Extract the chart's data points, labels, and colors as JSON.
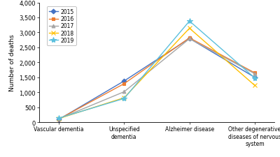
{
  "categories": [
    "Vascular dementia",
    "Unspecified\ndementia",
    "Alzheimer disease",
    "Other degenerative\ndiseases of nervous\nsystem"
  ],
  "series": {
    "2015": [
      95,
      1380,
      2800,
      1500
    ],
    "2016": [
      105,
      1290,
      2820,
      1650
    ],
    "2017": [
      115,
      1020,
      2790,
      1620
    ],
    "2018": [
      125,
      820,
      3140,
      1230
    ],
    "2019": [
      140,
      795,
      3380,
      1480
    ]
  },
  "colors": {
    "2015": "#4472c4",
    "2016": "#ed7d31",
    "2017": "#a6a6a6",
    "2018": "#ffc000",
    "2019": "#5bc0de"
  },
  "markers": {
    "2015": "D",
    "2016": "s",
    "2017": "^",
    "2018": "x",
    "2019": "*"
  },
  "markersizes": {
    "2015": 3.5,
    "2016": 3.5,
    "2017": 3.5,
    "2018": 5,
    "2019": 6
  },
  "ylabel": "Number of deaths",
  "ylim": [
    0,
    4000
  ],
  "yticks": [
    0,
    500,
    1000,
    1500,
    2000,
    2500,
    3000,
    3500,
    4000
  ],
  "legend_years": [
    "2015",
    "2016",
    "2017",
    "2018",
    "2019"
  ],
  "background_color": "#ffffff"
}
